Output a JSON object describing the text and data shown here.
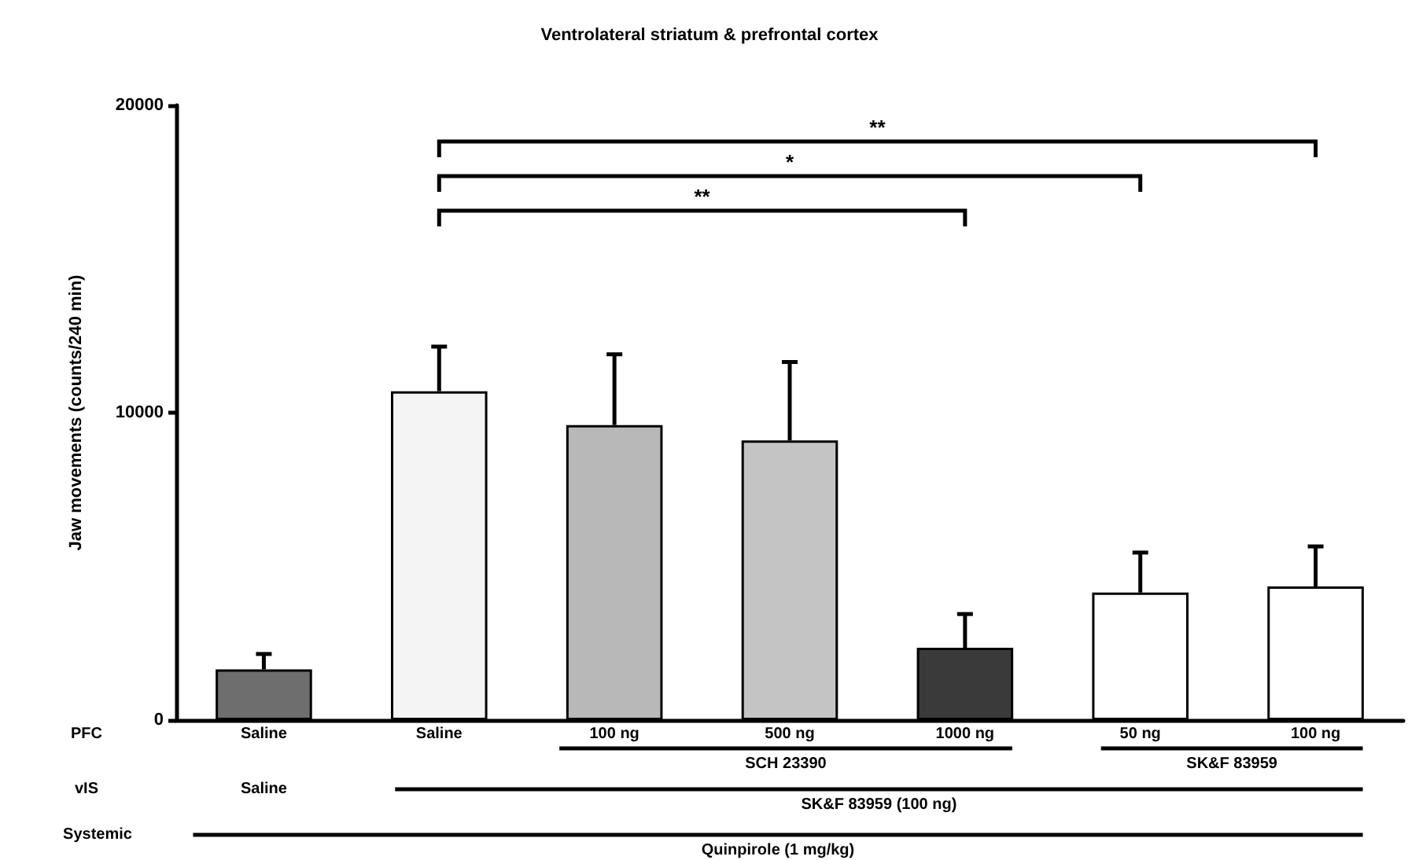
{
  "chart_data": {
    "type": "bar",
    "title": "Ventrolateral striatum & prefrontal cortex",
    "ylabel": "Jaw movements (counts/240 min)",
    "categories": [
      "Saline",
      "Saline",
      "100 ng",
      "500 ng",
      "1000 ng",
      "50 ng",
      "100 ng"
    ],
    "values": [
      1650,
      10700,
      9600,
      9100,
      2350,
      4150,
      4350
    ],
    "colors": [
      "#6e6e6e",
      "#f4f4f4",
      "#b8b8b8",
      "#c4c4c4",
      "#3a3a3a",
      "#ffffff",
      "#ffffff"
    ],
    "errors": [
      [
        1650,
        2150
      ],
      [
        10700,
        12150
      ],
      [
        9600,
        11900
      ],
      [
        9100,
        11650
      ],
      [
        2350,
        3450
      ],
      [
        4150,
        5450
      ],
      [
        4350,
        5650
      ]
    ],
    "ylim": [
      0,
      20000
    ],
    "yticks": [
      0,
      10000,
      20000
    ],
    "grid": false,
    "annotations": [
      "PFC",
      "SCH 23390",
      "SK&F 83959",
      "vIS",
      "Saline",
      "SK&F 83959 (100 ng)",
      "Systemic",
      "Quinpirole (1 mg/kg)",
      "**",
      "*",
      "**"
    ]
  }
}
